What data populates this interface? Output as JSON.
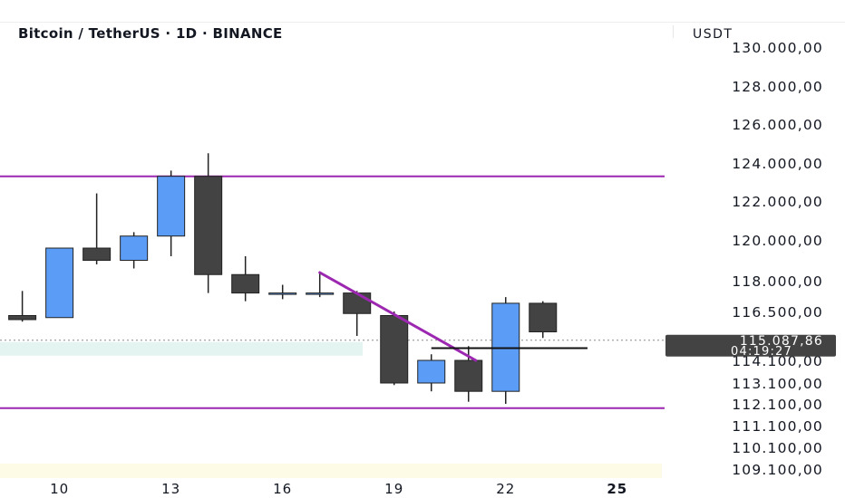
{
  "header": {
    "title": "Bitcoin / TetherUS · 1D · BINANCE",
    "currency": "USDT"
  },
  "colors": {
    "up": "#5b9cf6",
    "down": "#434343",
    "wick": "#222222",
    "level": "#9c27b0",
    "badge_bg": "#434343",
    "badge_text": "#ffffff",
    "zone": "#e3f4f1",
    "bottom_zone": "#fdfbe6"
  },
  "chart_data": {
    "type": "candlestick",
    "x_ticks": [
      {
        "day": 10,
        "label": "10"
      },
      {
        "day": 13,
        "label": "13"
      },
      {
        "day": 16,
        "label": "16"
      },
      {
        "day": 19,
        "label": "19"
      },
      {
        "day": 22,
        "label": "22"
      },
      {
        "day": 25,
        "label": "25"
      }
    ],
    "x_range": [
      8.4,
      26.2
    ],
    "y_ticks": [
      {
        "value": 130000,
        "label": "130.000,00"
      },
      {
        "value": 128000,
        "label": "128.000,00"
      },
      {
        "value": 126000,
        "label": "126.000,00"
      },
      {
        "value": 124000,
        "label": "124.000,00"
      },
      {
        "value": 122000,
        "label": "122.000,00"
      },
      {
        "value": 120000,
        "label": "120.000,00"
      },
      {
        "value": 118000,
        "label": "118.000,00"
      },
      {
        "value": 116500,
        "label": "116.500,00"
      },
      {
        "value": 114100,
        "label": "114.100,00"
      },
      {
        "value": 113100,
        "label": "113.100,00"
      },
      {
        "value": 112100,
        "label": "112.100,00"
      },
      {
        "value": 111100,
        "label": "111.100,00"
      },
      {
        "value": 110100,
        "label": "110.100,00"
      },
      {
        "value": 109100,
        "label": "109.100,00"
      }
    ],
    "candles": [
      {
        "day": 9,
        "open": 116300,
        "high": 117500,
        "low": 116000,
        "close": 116100
      },
      {
        "day": 10,
        "open": 116200,
        "high": 119600,
        "low": 116200,
        "close": 119600
      },
      {
        "day": 11,
        "open": 119600,
        "high": 122400,
        "low": 118800,
        "close": 119000
      },
      {
        "day": 12,
        "open": 119000,
        "high": 120400,
        "low": 118600,
        "close": 120200
      },
      {
        "day": 13,
        "open": 120200,
        "high": 123600,
        "low": 119200,
        "close": 123300
      },
      {
        "day": 14,
        "open": 123300,
        "high": 124500,
        "low": 117400,
        "close": 118300
      },
      {
        "day": 15,
        "open": 118300,
        "high": 119200,
        "low": 117000,
        "close": 117400
      },
      {
        "day": 16,
        "open": 117400,
        "high": 117800,
        "low": 117100,
        "close": 117400
      },
      {
        "day": 17,
        "open": 117400,
        "high": 118400,
        "low": 117200,
        "close": 117400
      },
      {
        "day": 18,
        "open": 117400,
        "high": 117500,
        "low": 115300,
        "close": 116400
      },
      {
        "day": 19,
        "open": 116300,
        "high": 116500,
        "low": 113000,
        "close": 113100
      },
      {
        "day": 20,
        "open": 113100,
        "high": 114400,
        "low": 112700,
        "close": 114100
      },
      {
        "day": 21,
        "open": 114100,
        "high": 114800,
        "low": 112200,
        "close": 112700
      },
      {
        "day": 22,
        "open": 112700,
        "high": 117200,
        "low": 112100,
        "close": 116900
      },
      {
        "day": 23,
        "open": 116900,
        "high": 117000,
        "low": 115200,
        "close": 115500
      }
    ],
    "levels": [
      {
        "name": "resistance",
        "price": 123300
      },
      {
        "name": "support",
        "price": 111900
      }
    ],
    "trendline": {
      "from": {
        "day": 17,
        "price": 118400
      },
      "to": {
        "day": 21,
        "price": 114100
      }
    },
    "breakout_line": {
      "from": {
        "day": 20,
        "price": 114700
      },
      "to": {
        "day": 24.2,
        "price": 114700
      }
    },
    "current_price": {
      "value": 115087.86,
      "label": "115.087,86",
      "countdown": "04:19:27"
    }
  }
}
